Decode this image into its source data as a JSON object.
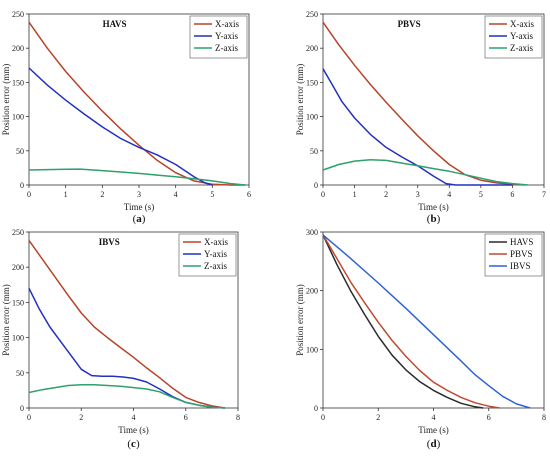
{
  "colors": {
    "x_axis": "#B8432A",
    "y_axis": "#2230C4",
    "z_axis": "#2FA06C",
    "havs": "#2B2B2B",
    "pbvs": "#C04A34",
    "ibvs": "#2E63D6"
  },
  "chart_data": [
    {
      "type": "line",
      "title": "HAVS",
      "caption_letter": "a",
      "xlabel": "Time (s)",
      "ylabel": "Position error (mm)",
      "xlim": [
        0,
        6
      ],
      "ylim": [
        0,
        250
      ],
      "xticks": [
        0,
        1,
        2,
        3,
        4,
        5,
        6
      ],
      "yticks": [
        0,
        50,
        100,
        150,
        200,
        250
      ],
      "legend_position": "top-right",
      "series": [
        {
          "name": "X-axis",
          "color": "#B8432A",
          "x": [
            0,
            0.5,
            1,
            1.5,
            2,
            2.5,
            3,
            3.5,
            4,
            4.5,
            5,
            5.5,
            5.9
          ],
          "y": [
            238,
            200,
            166,
            136,
            108,
            82,
            58,
            36,
            18,
            6,
            1,
            0,
            0
          ]
        },
        {
          "name": "Y-axis",
          "color": "#2230C4",
          "x": [
            0,
            0.5,
            1,
            1.5,
            2,
            2.5,
            3,
            3.5,
            4,
            4.5,
            4.8,
            5
          ],
          "y": [
            171,
            146,
            124,
            104,
            85,
            68,
            55,
            44,
            30,
            12,
            3,
            0
          ]
        },
        {
          "name": "Z-axis",
          "color": "#2FA06C",
          "x": [
            0,
            0.5,
            1,
            1.4,
            2,
            2.5,
            3,
            3.5,
            4,
            4.5,
            5,
            5.5,
            5.9
          ],
          "y": [
            22,
            22.5,
            23,
            23.3,
            21,
            19,
            17,
            14.5,
            12,
            9,
            6,
            2,
            0
          ]
        }
      ]
    },
    {
      "type": "line",
      "title": "PBVS",
      "caption_letter": "b",
      "xlabel": "Time (s)",
      "ylabel": "Position error (mm)",
      "xlim": [
        0,
        7
      ],
      "ylim": [
        0,
        250
      ],
      "xticks": [
        0,
        1,
        2,
        3,
        4,
        5,
        6,
        7
      ],
      "yticks": [
        0,
        50,
        100,
        150,
        200,
        250
      ],
      "legend_position": "top-right",
      "series": [
        {
          "name": "X-axis",
          "color": "#B8432A",
          "x": [
            0,
            0.5,
            1,
            1.5,
            2,
            2.5,
            3,
            3.5,
            4,
            4.5,
            5,
            5.5,
            6,
            6.4
          ],
          "y": [
            238,
            205,
            175,
            147,
            121,
            96,
            72,
            50,
            30,
            15,
            7,
            3,
            1,
            0
          ]
        },
        {
          "name": "Y-axis",
          "color": "#2230C4",
          "x": [
            0,
            0.3,
            0.6,
            1,
            1.5,
            2,
            2.5,
            3,
            3.5,
            3.9,
            4.2,
            5,
            6
          ],
          "y": [
            170,
            146,
            122,
            98,
            74,
            55,
            41,
            28,
            13,
            2,
            0,
            0,
            0
          ]
        },
        {
          "name": "Z-axis",
          "color": "#2FA06C",
          "x": [
            0,
            0.5,
            1,
            1.5,
            2,
            2.5,
            3,
            3.5,
            4,
            4.5,
            5,
            5.5,
            6,
            6.5
          ],
          "y": [
            22,
            30,
            35,
            37,
            36,
            32,
            28,
            24,
            20,
            15,
            10,
            5,
            2,
            0
          ]
        }
      ]
    },
    {
      "type": "line",
      "title": "IBVS",
      "caption_letter": "c",
      "xlabel": "Time (s)",
      "ylabel": "Position error (mm)",
      "xlim": [
        0,
        8
      ],
      "ylim": [
        0,
        250
      ],
      "xticks": [
        0,
        2,
        4,
        6,
        8
      ],
      "yticks": [
        0,
        50,
        100,
        150,
        200,
        250
      ],
      "legend_position": "top-right",
      "series": [
        {
          "name": "X-axis",
          "color": "#B8432A",
          "x": [
            0,
            0.5,
            1,
            1.5,
            2,
            2.5,
            3,
            3.5,
            4,
            4.5,
            5,
            5.5,
            6,
            6.5,
            7,
            7.5
          ],
          "y": [
            238,
            212,
            186,
            160,
            135,
            115,
            100,
            86,
            72,
            57,
            43,
            28,
            15,
            8,
            3,
            0
          ]
        },
        {
          "name": "Y-axis",
          "color": "#2230C4",
          "x": [
            0,
            0.4,
            0.8,
            1.2,
            1.6,
            2,
            2.4,
            2.8,
            3.2,
            3.6,
            4,
            4.5,
            5,
            5.5,
            6,
            6.5,
            7,
            7.5
          ],
          "y": [
            170,
            140,
            115,
            95,
            75,
            55,
            46,
            45,
            45,
            44,
            42,
            37,
            27,
            16,
            8,
            4,
            1,
            0
          ]
        },
        {
          "name": "Z-axis",
          "color": "#2FA06C",
          "x": [
            0,
            0.5,
            1,
            1.5,
            2,
            2.5,
            3,
            3.5,
            4,
            4.5,
            5,
            5.5,
            6,
            6.5,
            7,
            7.5
          ],
          "y": [
            22,
            26,
            29,
            32,
            33,
            33,
            32,
            31,
            29,
            27,
            23,
            15,
            8,
            4,
            1,
            0
          ]
        }
      ]
    },
    {
      "type": "line",
      "title": "",
      "caption_letter": "d",
      "xlabel": "Time (s)",
      "ylabel": "Position error (mm)",
      "xlim": [
        0,
        8
      ],
      "ylim": [
        0,
        300
      ],
      "xticks": [
        0,
        2,
        4,
        6,
        8
      ],
      "yticks": [
        0,
        100,
        200,
        300
      ],
      "legend_position": "top-right",
      "series": [
        {
          "name": "HAVS",
          "color": "#2B2B2B",
          "x": [
            0,
            0.5,
            1,
            1.5,
            2,
            2.5,
            3,
            3.5,
            4,
            4.5,
            5,
            5.5,
            5.8
          ],
          "y": [
            295,
            245,
            200,
            160,
            122,
            90,
            65,
            45,
            30,
            18,
            8,
            2,
            0
          ]
        },
        {
          "name": "PBVS",
          "color": "#C04A34",
          "x": [
            0,
            0.5,
            1,
            1.5,
            2,
            2.5,
            3,
            3.5,
            4,
            4.5,
            5,
            5.5,
            6,
            6.4
          ],
          "y": [
            295,
            255,
            215,
            180,
            146,
            115,
            88,
            64,
            44,
            30,
            18,
            9,
            3,
            0
          ]
        },
        {
          "name": "IBVS",
          "color": "#2E63D6",
          "x": [
            0,
            1,
            2,
            3,
            4,
            5,
            5.5,
            6,
            6.5,
            7,
            7.5
          ],
          "y": [
            295,
            255,
            213,
            170,
            125,
            80,
            57,
            38,
            20,
            7,
            0
          ]
        }
      ]
    }
  ]
}
